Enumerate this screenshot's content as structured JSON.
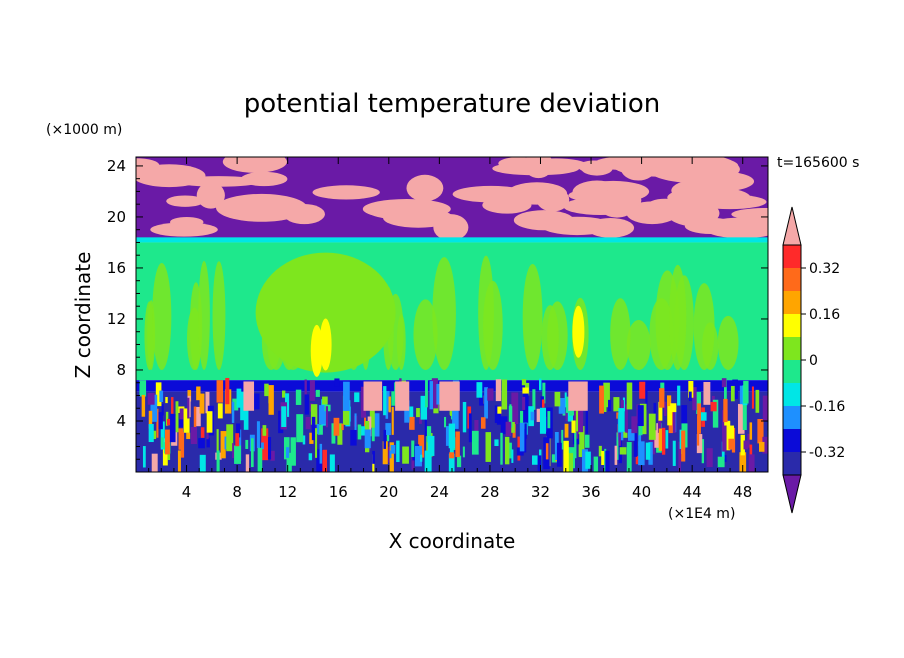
{
  "chart_data": {
    "type": "heatmap",
    "title": "potential temperature deviation",
    "xlabel": "X coordinate",
    "ylabel": "Z coordinate",
    "x_unit": "(×1E4 m)",
    "y_unit": "(×1000 m)",
    "time_label": "t=165600 s",
    "xlim": [
      0,
      50
    ],
    "ylim": [
      0,
      24.7
    ],
    "x_ticks": [
      4,
      8,
      12,
      16,
      20,
      24,
      28,
      32,
      36,
      40,
      44,
      48
    ],
    "y_ticks": [
      4,
      8,
      12,
      16,
      20,
      24
    ],
    "colorbar": {
      "levels": [
        -0.4,
        -0.32,
        -0.24,
        -0.16,
        -0.08,
        0,
        0.08,
        0.16,
        0.24,
        0.32,
        0.4
      ],
      "labels": [
        "0.32",
        "0.16",
        "0",
        "-0.16",
        "-0.32"
      ],
      "label_values": [
        0.32,
        0.16,
        0,
        -0.16,
        -0.32
      ],
      "colors": [
        "#6a1aa6",
        "#2a2aaa",
        "#0b0bd8",
        "#1e90ff",
        "#00e6e6",
        "#1ee88c",
        "#7ee61e",
        "#ffff00",
        "#ffa500",
        "#ff6a1a",
        "#ff2a2a",
        "#f5a8a8"
      ],
      "extend": "both"
    },
    "layers": [
      {
        "z_range": [
          18.3,
          24.7
        ],
        "description": "alternating",
        "colors": [
          "#6a1aa6",
          "#f5a8a8"
        ]
      },
      {
        "z_range": [
          18.0,
          18.3
        ],
        "value": -0.16
      },
      {
        "z_range": [
          7.2,
          18.0
        ],
        "value": 0.02
      },
      {
        "z_range": [
          6.6,
          7.2
        ],
        "value": -0.3
      },
      {
        "z_range": [
          0,
          6.6
        ],
        "description": "mixed"
      }
    ]
  }
}
